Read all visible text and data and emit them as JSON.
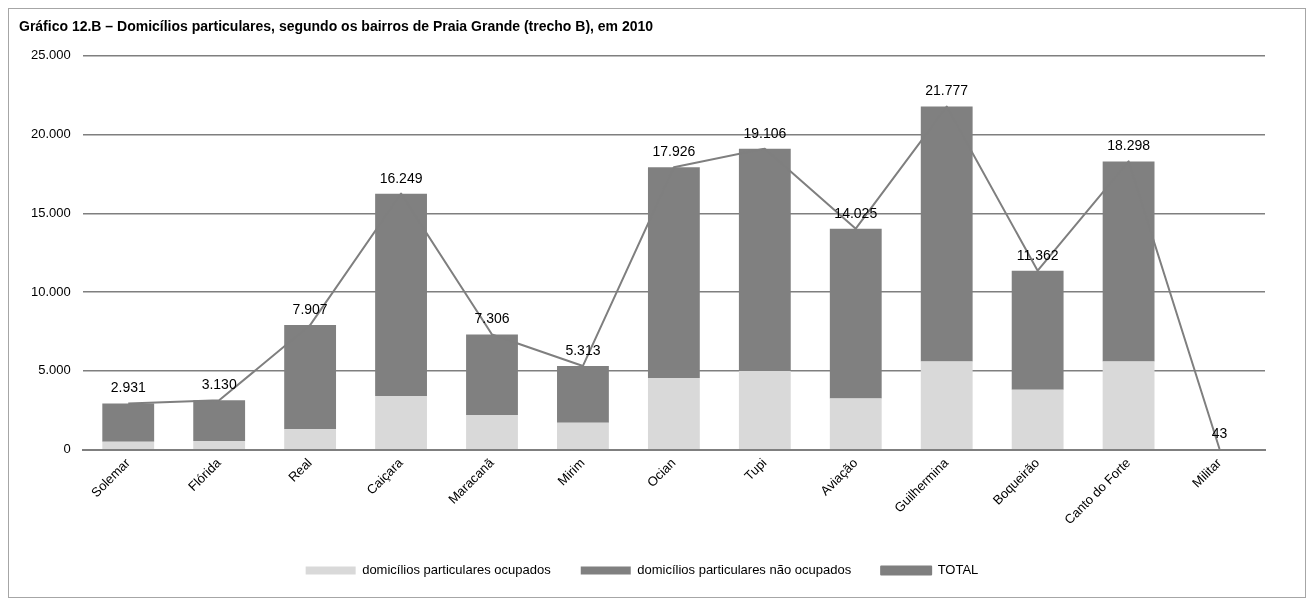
{
  "chart_data": {
    "type": "bar",
    "title": "Gráfico 12.B – Domicílios particulares, segundo os bairros de Praia Grande (trecho B), em 2010",
    "categories": [
      "Solemar",
      "Flórida",
      "Real",
      "Caiçara",
      "Maracanã",
      "Mirim",
      "Ocian",
      "Tupi",
      "Aviação",
      "Guilhermina",
      "Boqueirão",
      "Canto do Forte",
      "Militar"
    ],
    "stacked": true,
    "series": [
      {
        "name": "domicílios particulares ocupados",
        "color": "#d9d9d9",
        "values": [
          500,
          550,
          1300,
          3400,
          2200,
          1700,
          4550,
          5000,
          3250,
          5600,
          3800,
          5600,
          43
        ]
      },
      {
        "name": "domicílios particulares não ocupados",
        "color": "#808080",
        "values": [
          2431,
          2580,
          6607,
          12849,
          5106,
          3613,
          13376,
          14106,
          10775,
          16177,
          7562,
          12698,
          0
        ]
      },
      {
        "name": "TOTAL",
        "type": "line",
        "color": "#7f7f7f",
        "marker": "none",
        "values": [
          2931,
          3130,
          7907,
          16249,
          7306,
          5313,
          17926,
          19106,
          14025,
          21777,
          11362,
          18298,
          43
        ],
        "value_labels": [
          "2.931",
          "3.130",
          "7.907",
          "16.249",
          "7.306",
          "5.313",
          "17.926",
          "19.106",
          "14.025",
          "21.777",
          "11.362",
          "18.298",
          "43"
        ]
      }
    ],
    "ylim": [
      0,
      25000
    ],
    "yticks": [
      0,
      {
        "value": 5000,
        "label": "5.000"
      },
      {
        "value": 10000,
        "label": "10.000"
      },
      {
        "value": 15000,
        "label": "15.000"
      },
      {
        "value": 20000,
        "label": "20.000"
      },
      {
        "value": 25000,
        "label": "25.000"
      }
    ],
    "grid": "y",
    "legend": "bottom"
  }
}
